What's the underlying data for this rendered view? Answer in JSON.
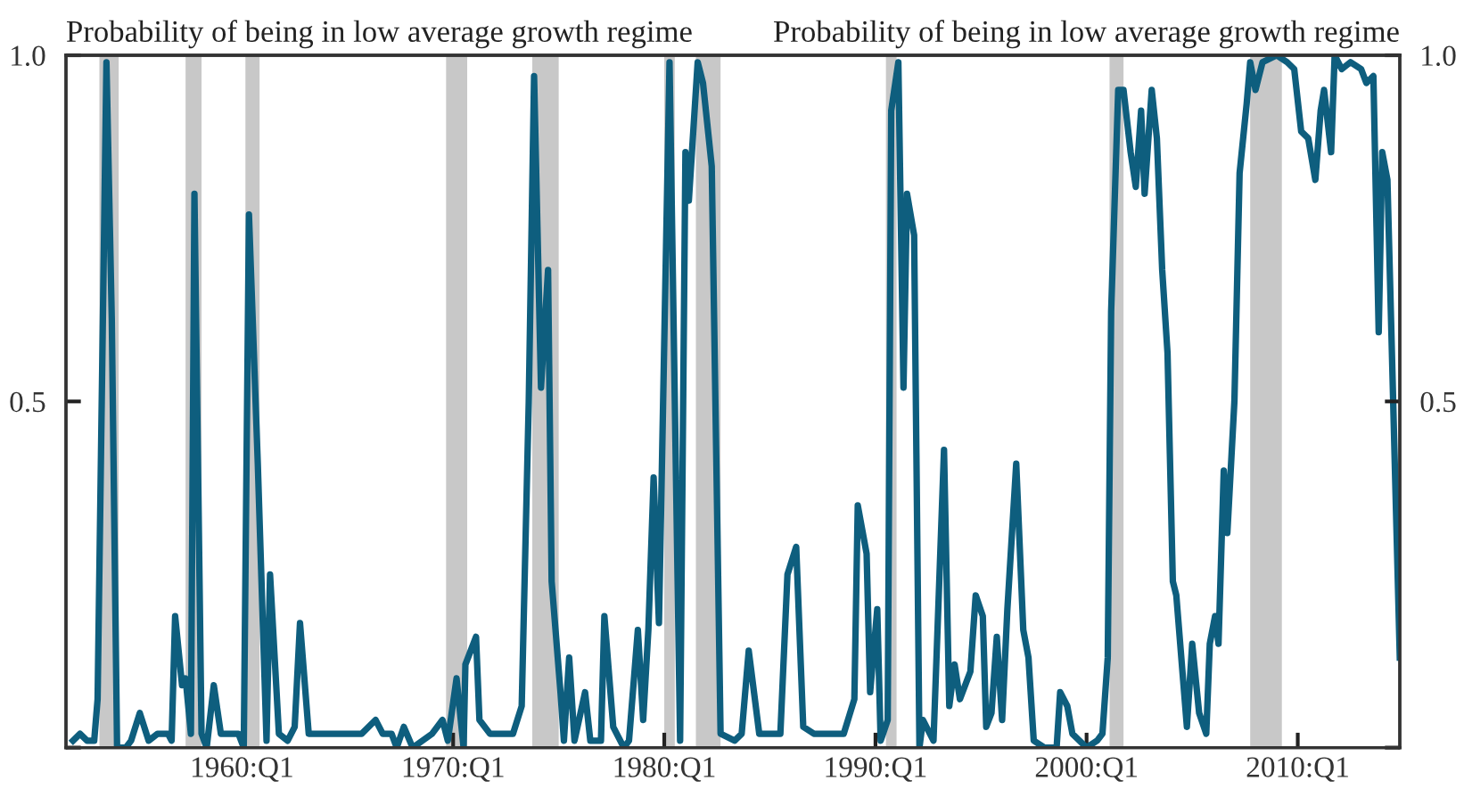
{
  "chart_data": {
    "type": "line",
    "ylabel": "Probability of being in low average growth regime",
    "y2label": "Probability of being in low average growth regime",
    "xlim": [
      "1951-09",
      "2014-11"
    ],
    "xticks": [
      {
        "value": "1960-01",
        "label": "1960:Q1"
      },
      {
        "value": "1970-01",
        "label": "1970:Q1"
      },
      {
        "value": "1980-01",
        "label": "1980:Q1"
      },
      {
        "value": "1990-01",
        "label": "1990:Q1"
      },
      {
        "value": "2000-01",
        "label": "2000:Q1"
      },
      {
        "value": "2010-01",
        "label": "2010:Q1"
      }
    ],
    "ylim": [
      0,
      1
    ],
    "yticks": [
      {
        "value": 0,
        "label": null
      },
      {
        "value": 0.5,
        "label": "0.5"
      },
      {
        "value": 1,
        "label": "1.0"
      }
    ],
    "y2lim": [
      0,
      1
    ],
    "y2ticks": [
      {
        "value": 0,
        "label": null
      },
      {
        "value": 0.5,
        "label": "0.5"
      },
      {
        "value": 1,
        "label": "1.0"
      }
    ],
    "grid": false,
    "legend": false,
    "line_style": "solid",
    "marker": "none",
    "bands": [
      {
        "axis": "x",
        "from": "1953-04",
        "to": "1954-03",
        "color": "#c8c8c8"
      },
      {
        "axis": "x",
        "from": "1957-05",
        "to": "1958-02",
        "color": "#c8c8c8"
      },
      {
        "axis": "x",
        "from": "1960-03",
        "to": "1960-11",
        "color": "#c8c8c8"
      },
      {
        "axis": "x",
        "from": "1969-09",
        "to": "1970-09",
        "color": "#c8c8c8"
      },
      {
        "axis": "x",
        "from": "1973-10",
        "to": "1975-01",
        "color": "#c8c8c8"
      },
      {
        "axis": "x",
        "from": "1980-01",
        "to": "1980-07",
        "color": "#c8c8c8"
      },
      {
        "axis": "x",
        "from": "1981-07",
        "to": "1982-09",
        "color": "#c8c8c8"
      },
      {
        "axis": "x",
        "from": "1990-07",
        "to": "1991-01",
        "color": "#c8c8c8"
      },
      {
        "axis": "x",
        "from": "2001-02",
        "to": "2001-10",
        "color": "#c8c8c8"
      },
      {
        "axis": "x",
        "from": "2007-10",
        "to": "2009-04",
        "color": "#c8c8c8"
      }
    ],
    "series": [
      {
        "color": "#0e5e7e",
        "x": [
          "1952-01",
          "1952-05",
          "1952-09",
          "1953-01",
          "1953-03",
          "1953-08",
          "1953-11",
          "1954-02",
          "1954-07",
          "1954-10",
          "1955-03",
          "1955-08",
          "1956-01",
          "1956-07",
          "1956-09",
          "1956-11",
          "1957-03",
          "1957-05",
          "1957-08",
          "1957-10",
          "1958-02",
          "1958-05",
          "1958-09",
          "1959-01",
          "1959-07",
          "1959-11",
          "1960-02",
          "1960-05",
          "1960-10",
          "1961-03",
          "1961-05",
          "1961-10",
          "1962-03",
          "1962-07",
          "1962-10",
          "1963-03",
          "1964-11",
          "1965-09",
          "1966-05",
          "1966-09",
          "1967-02",
          "1967-05",
          "1967-09",
          "1968-02",
          "1969-01",
          "1969-07",
          "1969-10",
          "1970-03",
          "1970-07",
          "1970-08",
          "1971-02",
          "1971-04",
          "1971-10",
          "1972-03",
          "1972-11",
          "1973-04",
          "1973-08",
          "1973-11",
          "1974-03",
          "1974-07",
          "1974-09",
          "1975-02",
          "1975-04",
          "1975-07",
          "1975-10",
          "1976-04",
          "1976-07",
          "1977-01",
          "1977-03",
          "1977-08",
          "1978-02",
          "1978-05",
          "1978-10",
          "1979-01",
          "1979-04",
          "1979-07",
          "1979-10",
          "1980-04",
          "1980-10",
          "1981-01",
          "1981-03",
          "1981-08",
          "1981-11",
          "1982-04",
          "1982-09",
          "1983-05",
          "1983-09",
          "1984-01",
          "1984-07",
          "1985-02",
          "1985-07",
          "1985-11",
          "1986-04",
          "1986-08",
          "1987-02",
          "1987-07",
          "1988-01",
          "1988-07",
          "1989-01",
          "1989-03",
          "1989-08",
          "1989-10",
          "1990-02",
          "1990-04",
          "1990-08",
          "1990-10",
          "1991-02",
          "1991-05",
          "1991-07",
          "1991-11",
          "1992-02",
          "1992-04",
          "1992-10",
          "1993-04",
          "1993-07",
          "1993-10",
          "1994-01",
          "1994-07",
          "1994-10",
          "1995-02",
          "1995-04",
          "1995-07",
          "1995-10",
          "1996-01",
          "1996-04",
          "1996-09",
          "1997-01",
          "1997-04",
          "1997-07",
          "1998-01",
          "1998-08",
          "1998-10",
          "1999-02",
          "1999-05",
          "2000-01",
          "2000-07",
          "2000-10",
          "2001-01",
          "2001-03",
          "2001-07",
          "2001-10",
          "2002-02",
          "2002-05",
          "2002-08",
          "2002-10",
          "2003-02",
          "2003-05",
          "2003-08",
          "2003-11",
          "2004-02",
          "2004-04",
          "2004-10",
          "2005-01",
          "2005-05",
          "2005-09",
          "2005-11",
          "2006-02",
          "2006-04",
          "2006-07",
          "2006-09",
          "2007-01",
          "2007-04",
          "2007-08",
          "2007-10",
          "2008-01",
          "2008-05",
          "2009-01",
          "2009-07",
          "2009-11",
          "2010-03",
          "2010-07",
          "2010-11",
          "2011-02",
          "2011-04",
          "2011-08",
          "2011-10",
          "2012-02",
          "2012-07",
          "2013-01",
          "2013-04",
          "2013-08",
          "2013-11",
          "2014-01",
          "2014-04",
          "2014-11"
        ],
        "values": [
          0.01,
          0.02,
          0.01,
          0.01,
          0.07,
          0.99,
          0.62,
          0.0,
          0.0,
          0.01,
          0.05,
          0.01,
          0.02,
          0.02,
          0.01,
          0.19,
          0.09,
          0.1,
          0.02,
          0.8,
          0.02,
          0.0,
          0.09,
          0.02,
          0.02,
          0.02,
          0.0,
          0.77,
          0.41,
          0.01,
          0.25,
          0.02,
          0.01,
          0.03,
          0.18,
          0.02,
          0.02,
          0.02,
          0.04,
          0.02,
          0.02,
          0.0,
          0.03,
          0.0,
          0.02,
          0.04,
          0.01,
          0.1,
          0.0,
          0.12,
          0.16,
          0.04,
          0.02,
          0.02,
          0.02,
          0.06,
          0.5,
          0.97,
          0.52,
          0.69,
          0.24,
          0.08,
          0.01,
          0.13,
          0.01,
          0.08,
          0.01,
          0.01,
          0.19,
          0.03,
          0.0,
          0.01,
          0.17,
          0.04,
          0.17,
          0.39,
          0.18,
          0.99,
          0.01,
          0.86,
          0.79,
          0.99,
          0.96,
          0.84,
          0.02,
          0.01,
          0.02,
          0.14,
          0.02,
          0.02,
          0.02,
          0.25,
          0.29,
          0.03,
          0.02,
          0.02,
          0.02,
          0.02,
          0.07,
          0.35,
          0.28,
          0.08,
          0.2,
          0.01,
          0.04,
          0.92,
          0.99,
          0.52,
          0.8,
          0.74,
          0.0,
          0.04,
          0.01,
          0.43,
          0.06,
          0.12,
          0.07,
          0.11,
          0.22,
          0.19,
          0.03,
          0.05,
          0.16,
          0.04,
          0.2,
          0.41,
          0.17,
          0.13,
          0.01,
          0.0,
          0.0,
          0.08,
          0.06,
          0.02,
          0.0,
          0.01,
          0.02,
          0.13,
          0.63,
          0.95,
          0.95,
          0.86,
          0.81,
          0.92,
          0.8,
          0.95,
          0.88,
          0.69,
          0.57,
          0.24,
          0.22,
          0.03,
          0.15,
          0.05,
          0.02,
          0.15,
          0.19,
          0.15,
          0.4,
          0.31,
          0.5,
          0.83,
          0.93,
          0.99,
          0.95,
          0.99,
          1.0,
          0.99,
          0.98,
          0.89,
          0.88,
          0.82,
          0.92,
          0.95,
          0.86,
          1.0,
          0.98,
          0.99,
          0.98,
          0.96,
          0.97,
          0.6,
          0.86,
          0.82,
          0.13
        ]
      }
    ]
  }
}
